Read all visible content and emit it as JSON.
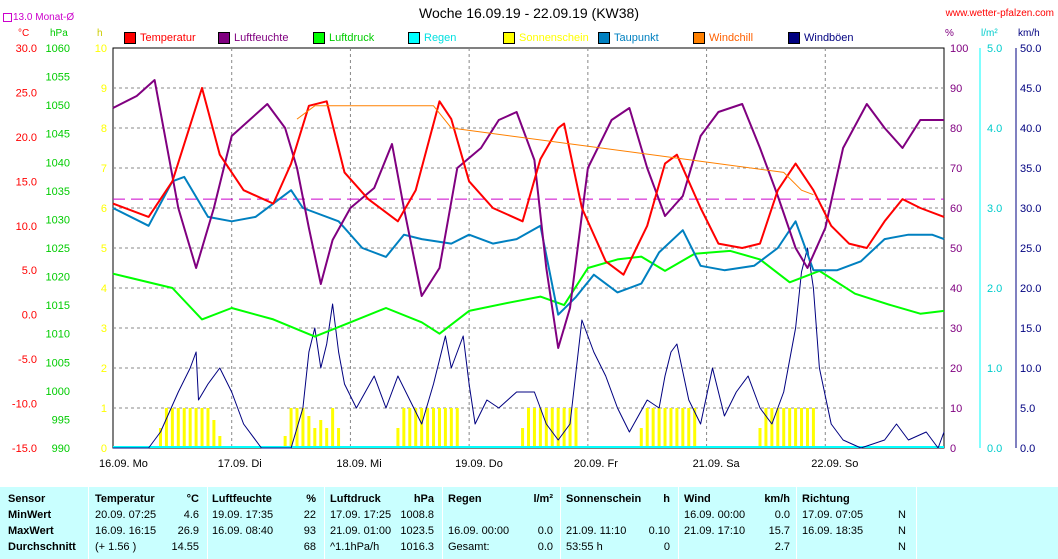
{
  "header": {
    "title": "Woche 16.09.19 - 22.09.19 (KW38)",
    "source": "www.wetter-pfalzen.com",
    "avg_label": "13.0 Monat-Ø"
  },
  "units": {
    "temp": "°C",
    "pressure": "hPa",
    "sun": "h",
    "humidity": "%",
    "rain": "l/m²",
    "wind": "km/h"
  },
  "legend": [
    {
      "name": "Temperatur",
      "color": "#ff0000"
    },
    {
      "name": "Luftfeuchte",
      "color": "#800080"
    },
    {
      "name": "Luftdruck",
      "color": "#00ff00"
    },
    {
      "name": "Regen",
      "color": "#00ffff"
    },
    {
      "name": "Sonnenschein",
      "color": "#ffff00"
    },
    {
      "name": "Taupunkt",
      "color": "#0080c0"
    },
    {
      "name": "Windchill",
      "color": "#ff8000"
    },
    {
      "name": "Windböen",
      "color": "#000080"
    }
  ],
  "chart_data": {
    "type": "line",
    "x_tick_labels": [
      "16.09. Mo",
      "17.09. Di",
      "18.09. Mi",
      "19.09. Do",
      "20.09. Fr",
      "21.09. Sa",
      "22.09. So"
    ],
    "axes": {
      "temp": {
        "ticks": [
          "30.0",
          "25.0",
          "20.0",
          "15.0",
          "10.0",
          "5.0",
          "0.0",
          "-5.0",
          "-10.0",
          "-15.0"
        ],
        "range": [
          -15,
          30
        ],
        "color": "#ff0000"
      },
      "pressure": {
        "ticks": [
          "1060",
          "1055",
          "1050",
          "1045",
          "1040",
          "1035",
          "1030",
          "1025",
          "1020",
          "1015",
          "1010",
          "1005",
          "1000",
          "995",
          "990"
        ],
        "range": [
          990,
          1060
        ],
        "color": "#00cc00"
      },
      "sun": {
        "ticks": [
          "10",
          "9",
          "8",
          "7",
          "6",
          "5",
          "4",
          "3",
          "2",
          "1",
          "0"
        ],
        "range": [
          0,
          10
        ],
        "color": "#ffff00"
      },
      "humidity": {
        "ticks": [
          "100",
          "90",
          "80",
          "70",
          "60",
          "50",
          "40",
          "30",
          "20",
          "10",
          "0"
        ],
        "range": [
          0,
          100
        ],
        "color": "#800080"
      },
      "rain": {
        "ticks": [
          "5.0",
          "4.0",
          "3.0",
          "2.0",
          "1.0",
          "0.0"
        ],
        "range": [
          0,
          5
        ],
        "color": "#00ffff"
      },
      "wind": {
        "ticks": [
          "50.0",
          "45.0",
          "40.0",
          "35.0",
          "30.0",
          "25.0",
          "20.0",
          "15.0",
          "10.0",
          "5.0",
          "0.0"
        ],
        "range": [
          0,
          50
        ],
        "color": "#000080"
      }
    },
    "month_avg_temp": 13.0,
    "series": {
      "temperature": [
        [
          0,
          12.5
        ],
        [
          0.3,
          11
        ],
        [
          0.5,
          15
        ],
        [
          0.75,
          25.5
        ],
        [
          0.9,
          18
        ],
        [
          1.1,
          14
        ],
        [
          1.35,
          12.5
        ],
        [
          1.5,
          17
        ],
        [
          1.65,
          23.5
        ],
        [
          1.8,
          24
        ],
        [
          1.95,
          16
        ],
        [
          2.15,
          13
        ],
        [
          2.4,
          10.5
        ],
        [
          2.55,
          14
        ],
        [
          2.75,
          24
        ],
        [
          2.85,
          22
        ],
        [
          3.0,
          15
        ],
        [
          3.2,
          12
        ],
        [
          3.45,
          10.5
        ],
        [
          3.6,
          17.5
        ],
        [
          3.75,
          21
        ],
        [
          3.8,
          21.5
        ],
        [
          3.95,
          12
        ],
        [
          4.15,
          6
        ],
        [
          4.3,
          4.5
        ],
        [
          4.5,
          10
        ],
        [
          4.65,
          17
        ],
        [
          4.75,
          18
        ],
        [
          4.95,
          12
        ],
        [
          5.1,
          8
        ],
        [
          5.3,
          7.5
        ],
        [
          5.45,
          8
        ],
        [
          5.6,
          14
        ],
        [
          5.75,
          17
        ],
        [
          5.9,
          14
        ],
        [
          6.05,
          10
        ],
        [
          6.2,
          8
        ],
        [
          6.35,
          7.5
        ],
        [
          6.5,
          10.5
        ],
        [
          6.65,
          13
        ],
        [
          6.8,
          12
        ],
        [
          7.0,
          11
        ]
      ],
      "windchill": [
        [
          1.55,
          22
        ],
        [
          1.7,
          23.5
        ],
        [
          1.8,
          23.5
        ],
        [
          2.7,
          23.5
        ],
        [
          2.85,
          21
        ],
        [
          5.65,
          16
        ],
        [
          5.8,
          14
        ],
        [
          5.9,
          13.5
        ]
      ],
      "dewpoint": [
        [
          0,
          12
        ],
        [
          0.3,
          10
        ],
        [
          0.5,
          15
        ],
        [
          0.6,
          15.5
        ],
        [
          0.8,
          11
        ],
        [
          1.0,
          10.5
        ],
        [
          1.2,
          11
        ],
        [
          1.5,
          14
        ],
        [
          1.6,
          12
        ],
        [
          1.9,
          10.5
        ],
        [
          2.1,
          7.5
        ],
        [
          2.3,
          6.5
        ],
        [
          2.45,
          9
        ],
        [
          2.6,
          8.5
        ],
        [
          2.85,
          8
        ],
        [
          3.0,
          9
        ],
        [
          3.2,
          8
        ],
        [
          3.4,
          8.5
        ],
        [
          3.6,
          10
        ],
        [
          3.75,
          0
        ],
        [
          3.9,
          2
        ],
        [
          4.05,
          4.5
        ],
        [
          4.25,
          2.5
        ],
        [
          4.45,
          3.5
        ],
        [
          4.6,
          7
        ],
        [
          4.8,
          9.5
        ],
        [
          4.95,
          5.5
        ],
        [
          5.15,
          5
        ],
        [
          5.4,
          5.5
        ],
        [
          5.6,
          7.5
        ],
        [
          5.75,
          10.5
        ],
        [
          5.9,
          5
        ],
        [
          6.1,
          5
        ],
        [
          6.3,
          6
        ],
        [
          6.5,
          8.5
        ],
        [
          6.7,
          9
        ],
        [
          6.9,
          9
        ],
        [
          7.0,
          8.5
        ]
      ],
      "humidity": [
        [
          0,
          85
        ],
        [
          0.2,
          88
        ],
        [
          0.35,
          92
        ],
        [
          0.55,
          60
        ],
        [
          0.7,
          45
        ],
        [
          0.85,
          60
        ],
        [
          1.0,
          78
        ],
        [
          1.15,
          82
        ],
        [
          1.3,
          86
        ],
        [
          1.45,
          80
        ],
        [
          1.55,
          70
        ],
        [
          1.65,
          55
        ],
        [
          1.75,
          41
        ],
        [
          1.85,
          52
        ],
        [
          2.0,
          60
        ],
        [
          2.2,
          65
        ],
        [
          2.35,
          76
        ],
        [
          2.45,
          60
        ],
        [
          2.6,
          38
        ],
        [
          2.75,
          45
        ],
        [
          2.9,
          70
        ],
        [
          3.1,
          75
        ],
        [
          3.25,
          82
        ],
        [
          3.4,
          84
        ],
        [
          3.55,
          72
        ],
        [
          3.65,
          45
        ],
        [
          3.75,
          25
        ],
        [
          3.85,
          35
        ],
        [
          4.0,
          70
        ],
        [
          4.2,
          82
        ],
        [
          4.35,
          85
        ],
        [
          4.5,
          70
        ],
        [
          4.65,
          58
        ],
        [
          4.8,
          63
        ],
        [
          4.95,
          78
        ],
        [
          5.1,
          84
        ],
        [
          5.3,
          86
        ],
        [
          5.45,
          75
        ],
        [
          5.6,
          63
        ],
        [
          5.75,
          50
        ],
        [
          5.85,
          45
        ],
        [
          6.0,
          55
        ],
        [
          6.15,
          75
        ],
        [
          6.35,
          86
        ],
        [
          6.5,
          80
        ],
        [
          6.65,
          75
        ],
        [
          6.8,
          82
        ],
        [
          7.0,
          82
        ]
      ],
      "pressure": [
        [
          0,
          1020.5
        ],
        [
          0.5,
          1018
        ],
        [
          0.75,
          1012.5
        ],
        [
          1.0,
          1014.5
        ],
        [
          1.35,
          1012.5
        ],
        [
          1.7,
          1009.5
        ],
        [
          2.0,
          1012
        ],
        [
          2.3,
          1014.5
        ],
        [
          2.6,
          1012
        ],
        [
          2.75,
          1010
        ],
        [
          3.0,
          1014
        ],
        [
          3.35,
          1015.5
        ],
        [
          3.6,
          1016.5
        ],
        [
          3.8,
          1015
        ],
        [
          4.0,
          1021.5
        ],
        [
          4.25,
          1023
        ],
        [
          4.45,
          1023.5
        ],
        [
          4.65,
          1021
        ],
        [
          4.9,
          1024
        ],
        [
          5.2,
          1024.5
        ],
        [
          5.45,
          1023
        ],
        [
          5.7,
          1019
        ],
        [
          5.95,
          1021
        ],
        [
          6.25,
          1017
        ],
        [
          6.55,
          1015
        ],
        [
          6.8,
          1013.5
        ],
        [
          7.0,
          1014
        ]
      ],
      "gusts": [
        [
          0,
          0
        ],
        [
          0.3,
          0
        ],
        [
          0.4,
          2
        ],
        [
          0.55,
          7
        ],
        [
          0.65,
          10
        ],
        [
          0.7,
          12
        ],
        [
          0.72,
          6
        ],
        [
          0.8,
          8
        ],
        [
          0.9,
          10
        ],
        [
          1.0,
          7
        ],
        [
          1.1,
          3
        ],
        [
          1.25,
          0
        ],
        [
          1.5,
          0
        ],
        [
          1.6,
          5
        ],
        [
          1.65,
          12
        ],
        [
          1.7,
          15
        ],
        [
          1.75,
          10
        ],
        [
          1.8,
          13
        ],
        [
          1.85,
          18
        ],
        [
          1.9,
          12
        ],
        [
          1.95,
          8
        ],
        [
          2.05,
          5
        ],
        [
          2.2,
          9
        ],
        [
          2.3,
          5
        ],
        [
          2.4,
          9
        ],
        [
          2.5,
          6
        ],
        [
          2.6,
          3
        ],
        [
          2.7,
          8
        ],
        [
          2.8,
          14
        ],
        [
          2.85,
          10
        ],
        [
          2.95,
          14
        ],
        [
          3.0,
          8
        ],
        [
          3.05,
          3
        ],
        [
          3.15,
          6
        ],
        [
          3.25,
          5
        ],
        [
          3.4,
          7
        ],
        [
          3.55,
          7
        ],
        [
          3.65,
          3
        ],
        [
          3.75,
          1
        ],
        [
          3.85,
          3
        ],
        [
          3.95,
          16
        ],
        [
          4.05,
          12
        ],
        [
          4.15,
          9
        ],
        [
          4.25,
          5
        ],
        [
          4.35,
          2
        ],
        [
          4.5,
          6
        ],
        [
          4.6,
          5
        ],
        [
          4.65,
          9
        ],
        [
          4.7,
          12
        ],
        [
          4.75,
          13
        ],
        [
          4.85,
          6
        ],
        [
          4.95,
          3
        ],
        [
          5.05,
          10
        ],
        [
          5.15,
          4
        ],
        [
          5.25,
          7
        ],
        [
          5.35,
          9
        ],
        [
          5.45,
          5
        ],
        [
          5.55,
          3
        ],
        [
          5.65,
          7
        ],
        [
          5.75,
          15
        ],
        [
          5.8,
          22
        ],
        [
          5.85,
          25
        ],
        [
          5.9,
          20
        ],
        [
          5.95,
          10
        ],
        [
          6.05,
          3
        ],
        [
          6.15,
          1
        ],
        [
          6.3,
          0
        ],
        [
          6.5,
          1
        ],
        [
          6.6,
          3
        ],
        [
          6.7,
          1
        ],
        [
          6.85,
          2
        ],
        [
          6.95,
          0
        ],
        [
          7.0,
          2
        ]
      ],
      "sunshine_bars": [
        [
          0.4,
          0.5
        ],
        [
          0.45,
          1
        ],
        [
          0.5,
          1
        ],
        [
          0.55,
          1
        ],
        [
          0.6,
          1
        ],
        [
          0.65,
          1
        ],
        [
          0.7,
          1
        ],
        [
          0.75,
          1
        ],
        [
          0.8,
          1
        ],
        [
          0.85,
          0.7
        ],
        [
          0.9,
          0.3
        ],
        [
          1.45,
          0.3
        ],
        [
          1.5,
          1
        ],
        [
          1.55,
          1
        ],
        [
          1.6,
          1
        ],
        [
          1.65,
          0.8
        ],
        [
          1.7,
          0.5
        ],
        [
          1.75,
          0.7
        ],
        [
          1.8,
          0.5
        ],
        [
          1.85,
          1
        ],
        [
          1.9,
          0.5
        ],
        [
          2.4,
          0.5
        ],
        [
          2.45,
          1
        ],
        [
          2.5,
          1
        ],
        [
          2.55,
          1
        ],
        [
          2.6,
          1
        ],
        [
          2.65,
          1
        ],
        [
          2.7,
          1
        ],
        [
          2.75,
          1
        ],
        [
          2.8,
          1
        ],
        [
          2.85,
          1
        ],
        [
          2.9,
          1
        ],
        [
          3.45,
          0.5
        ],
        [
          3.5,
          1
        ],
        [
          3.55,
          1
        ],
        [
          3.6,
          1
        ],
        [
          3.65,
          1
        ],
        [
          3.7,
          1
        ],
        [
          3.75,
          1
        ],
        [
          3.8,
          1
        ],
        [
          3.85,
          1
        ],
        [
          3.9,
          1
        ],
        [
          4.45,
          0.5
        ],
        [
          4.5,
          1
        ],
        [
          4.55,
          1
        ],
        [
          4.6,
          1
        ],
        [
          4.65,
          1
        ],
        [
          4.7,
          1
        ],
        [
          4.75,
          1
        ],
        [
          4.8,
          1
        ],
        [
          4.85,
          1
        ],
        [
          4.9,
          1
        ],
        [
          5.45,
          0.5
        ],
        [
          5.5,
          1
        ],
        [
          5.55,
          1
        ],
        [
          5.6,
          1
        ],
        [
          5.65,
          1
        ],
        [
          5.7,
          1
        ],
        [
          5.75,
          1
        ],
        [
          5.8,
          1
        ],
        [
          5.85,
          1
        ],
        [
          5.9,
          1
        ]
      ]
    }
  },
  "table": {
    "columns": [
      {
        "header": "Sensor",
        "unit": "",
        "rows": [
          "MinWert",
          "MaxWert",
          "Durchschnitt"
        ],
        "values": [
          "",
          "",
          ""
        ]
      },
      {
        "header": "Temperatur",
        "unit": "°C",
        "rows": [
          "20.09.  07:25",
          "16.09.  16:15",
          "(+ 1.56 )"
        ],
        "values": [
          "4.6",
          "26.9",
          "14.55"
        ]
      },
      {
        "header": "Luftfeuchte",
        "unit": "%",
        "rows": [
          "19.09.  17:35",
          "16.09.  08:40",
          ""
        ],
        "values": [
          "22",
          "93",
          "68"
        ]
      },
      {
        "header": "Luftdruck",
        "unit": "hPa",
        "rows": [
          "17.09.  17:25",
          "21.09.  01:00",
          "^1.1hPa/h"
        ],
        "values": [
          "1008.8",
          "1023.5",
          "1016.3"
        ]
      },
      {
        "header": "Regen",
        "unit": "l/m²",
        "rows": [
          "",
          "16.09.  00:00",
          "Gesamt:"
        ],
        "values": [
          "",
          "0.0",
          "0.0"
        ]
      },
      {
        "header": "Sonnenschein",
        "unit": "h",
        "rows": [
          "",
          "21.09.  11:10",
          "53:55 h"
        ],
        "values": [
          "",
          "0.10",
          "0"
        ]
      },
      {
        "header": "Wind",
        "unit": "km/h",
        "rows": [
          "16.09.  00:00",
          "21.09.  17:10",
          ""
        ],
        "values": [
          "0.0",
          "15.7",
          "2.7"
        ]
      },
      {
        "header": "Richtung",
        "unit": "",
        "rows": [
          "17.09.  07:05",
          "16.09.  18:35",
          ""
        ],
        "values": [
          "N",
          "N",
          "N"
        ]
      }
    ]
  }
}
